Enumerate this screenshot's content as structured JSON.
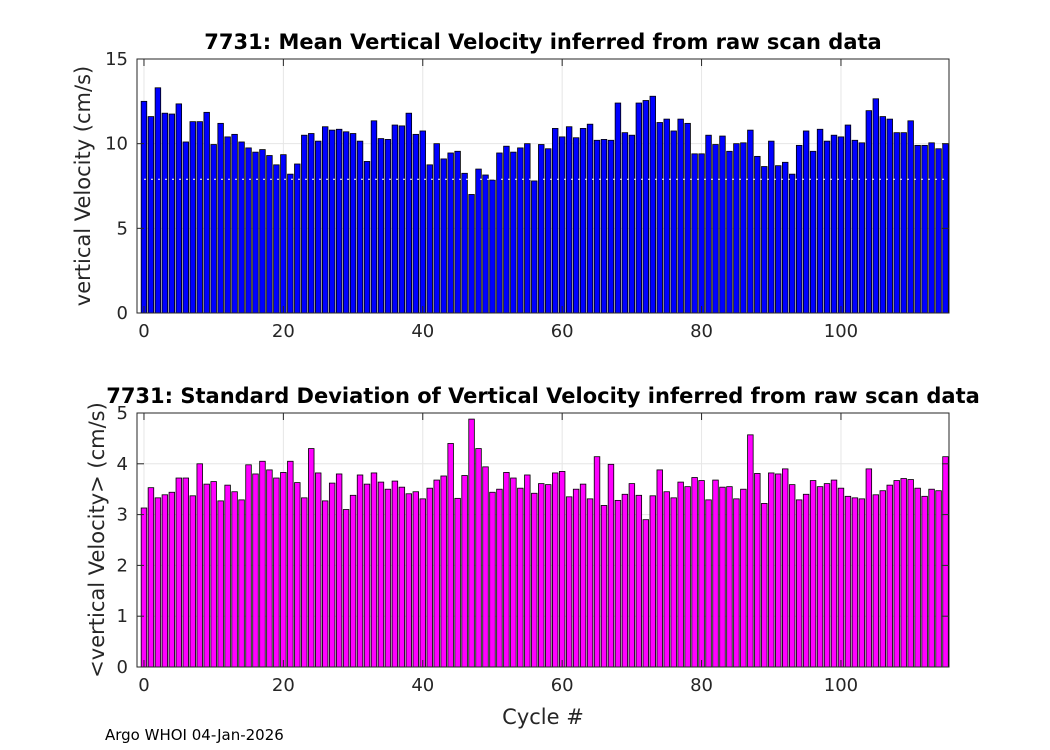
{
  "chart_data": [
    {
      "type": "bar",
      "title": "7731: Mean Vertical Velocity inferred from raw scan data",
      "xlabel": "",
      "ylabel": "vertical Velocity (cm/s)",
      "xlim": [
        -1,
        115.5
      ],
      "ylim": [
        0,
        15
      ],
      "xticks": [
        0,
        20,
        40,
        60,
        80,
        100
      ],
      "yticks": [
        0,
        5,
        10,
        15
      ],
      "color": "#0000ff",
      "edge_color": "#000000",
      "reference_line": 7.9,
      "x_start": 0,
      "values": [
        12.5,
        11.6,
        13.3,
        11.8,
        11.75,
        12.35,
        10.1,
        11.3,
        11.3,
        11.85,
        9.95,
        11.2,
        10.4,
        10.55,
        10.1,
        9.75,
        9.5,
        9.65,
        9.3,
        8.75,
        9.35,
        8.2,
        8.8,
        10.5,
        10.6,
        10.15,
        11.0,
        10.8,
        10.85,
        10.7,
        10.6,
        10.15,
        8.95,
        11.35,
        10.3,
        10.25,
        11.1,
        11.05,
        11.8,
        10.55,
        10.75,
        8.75,
        10.0,
        9.1,
        9.45,
        9.55,
        8.25,
        7.0,
        8.5,
        8.15,
        7.85,
        9.45,
        9.85,
        9.5,
        9.75,
        10.0,
        7.8,
        9.95,
        9.7,
        10.9,
        10.4,
        11.0,
        10.35,
        10.9,
        11.15,
        10.2,
        10.25,
        10.2,
        12.4,
        10.65,
        10.5,
        12.4,
        12.55,
        12.8,
        11.25,
        11.45,
        10.75,
        11.45,
        11.2,
        9.4,
        9.4,
        10.5,
        9.95,
        10.45,
        9.55,
        10.0,
        10.05,
        10.8,
        9.25,
        8.65,
        10.15,
        8.7,
        8.9,
        8.2,
        9.9,
        10.75,
        9.55,
        10.85,
        10.15,
        10.5,
        10.4,
        11.1,
        10.2,
        10.05,
        11.95,
        12.65,
        11.6,
        11.45,
        10.65,
        10.65,
        11.35,
        9.9,
        9.9,
        10.05,
        9.7,
        10.0
      ]
    },
    {
      "type": "bar",
      "title": "7731: Standard Deviation of Vertical Velocity inferred from raw scan data",
      "xlabel": "Cycle #",
      "ylabel": "<vertical Velocity> (cm/s)",
      "xlim": [
        -1,
        115.5
      ],
      "ylim": [
        0,
        5
      ],
      "xticks": [
        0,
        20,
        40,
        60,
        80,
        100
      ],
      "yticks": [
        0,
        1,
        2,
        3,
        4,
        5
      ],
      "color": "#ff00ff",
      "edge_color": "#000000",
      "x_start": 0,
      "values": [
        3.13,
        3.53,
        3.33,
        3.39,
        3.44,
        3.72,
        3.72,
        3.37,
        4.0,
        3.6,
        3.65,
        3.27,
        3.58,
        3.45,
        3.29,
        3.98,
        3.8,
        4.05,
        3.88,
        3.72,
        3.83,
        4.05,
        3.63,
        3.33,
        4.3,
        3.82,
        3.27,
        3.62,
        3.8,
        3.1,
        3.38,
        3.78,
        3.6,
        3.82,
        3.64,
        3.5,
        3.66,
        3.54,
        3.41,
        3.45,
        3.31,
        3.52,
        3.68,
        3.76,
        4.4,
        3.32,
        3.77,
        4.88,
        4.3,
        3.94,
        3.44,
        3.5,
        3.83,
        3.72,
        3.52,
        3.78,
        3.42,
        3.61,
        3.59,
        3.82,
        3.85,
        3.35,
        3.5,
        3.6,
        3.31,
        4.14,
        3.18,
        3.99,
        3.28,
        3.4,
        3.61,
        3.38,
        2.9,
        3.37,
        3.88,
        3.45,
        3.33,
        3.64,
        3.55,
        3.73,
        3.67,
        3.29,
        3.68,
        3.54,
        3.55,
        3.31,
        3.5,
        4.57,
        3.81,
        3.22,
        3.82,
        3.8,
        3.9,
        3.59,
        3.29,
        3.4,
        3.67,
        3.55,
        3.61,
        3.68,
        3.52,
        3.36,
        3.33,
        3.31,
        3.9,
        3.39,
        3.47,
        3.58,
        3.67,
        3.71,
        3.69,
        3.52,
        3.36,
        3.5,
        3.47,
        4.14
      ]
    }
  ],
  "footer": "Argo WHOI 04-Jan-2026"
}
